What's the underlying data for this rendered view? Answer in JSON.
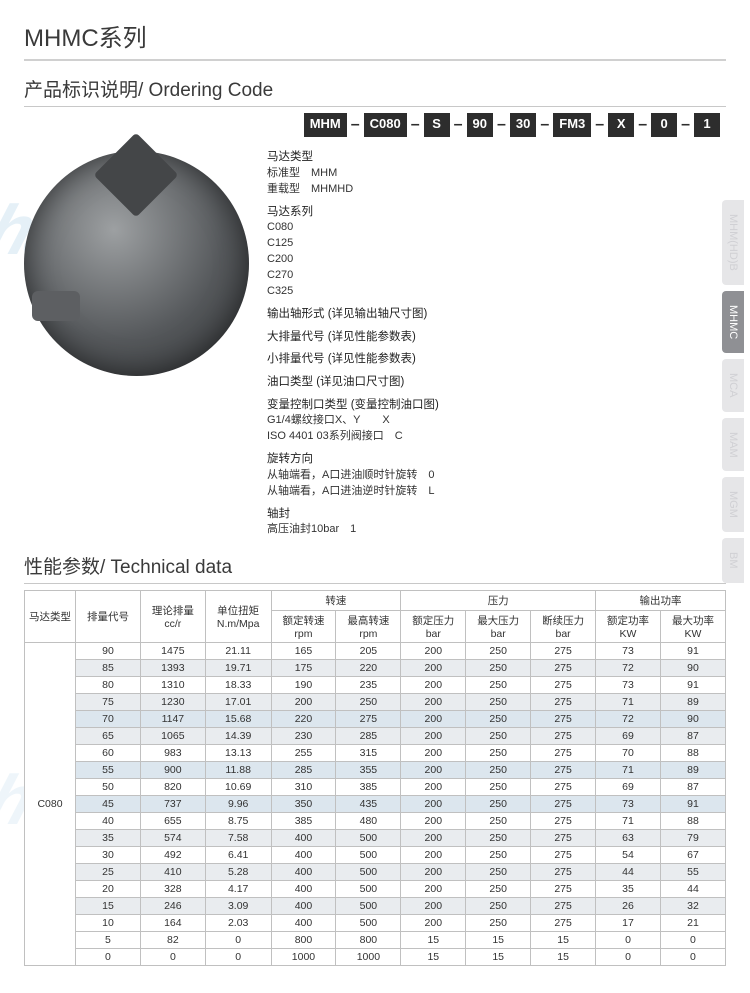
{
  "page": {
    "title": "MHMC系列",
    "watermark": "hanshu"
  },
  "tabs": [
    {
      "label": "MHM(HD)B",
      "active": false
    },
    {
      "label": "MHMC",
      "active": true
    },
    {
      "label": "MCA",
      "active": false
    },
    {
      "label": "MAM",
      "active": false
    },
    {
      "label": "MGM",
      "active": false
    },
    {
      "label": "BM",
      "active": false
    }
  ],
  "ordering": {
    "heading": "产品标识说明/ Ordering Code",
    "code": [
      "MHM",
      "C080",
      "S",
      "90",
      "30",
      "FM3",
      "X",
      "0",
      "1"
    ],
    "groups": [
      {
        "title": "马达类型",
        "lines": [
          "标准型　MHM",
          "重载型　MHMHD"
        ]
      },
      {
        "title": "马达系列",
        "lines": [
          "C080",
          "C125",
          "C200",
          "C270",
          "C325"
        ]
      },
      {
        "title": "输出轴形式 (详见输出轴尺寸图)",
        "lines": []
      },
      {
        "title": "大排量代号 (详见性能参数表)",
        "lines": []
      },
      {
        "title": "小排量代号 (详见性能参数表)",
        "lines": []
      },
      {
        "title": "油口类型 (详见油口尺寸图)",
        "lines": []
      },
      {
        "title": "变量控制口类型 (变量控制油口图)",
        "lines": [
          "G1/4螺纹接口X、Y　　X",
          "ISO 4401 03系列阀接口　C"
        ]
      },
      {
        "title": "旋转方向",
        "lines": [
          "从轴端看，A口进油顺时针旋转　0",
          "从轴端看，A口进油逆时针旋转　L"
        ]
      },
      {
        "title": "轴封",
        "lines": [
          "高压油封10bar　1"
        ]
      }
    ]
  },
  "technical": {
    "heading": "性能参数/ Technical data",
    "group_headers": {
      "speed": "转速",
      "pressure": "压力",
      "power": "输出功率"
    },
    "columns": [
      "马达类型",
      "排量代号",
      "理论排量\ncc/r",
      "单位扭矩\nN.m/Mpa",
      "额定转速\nrpm",
      "最高转速\nrpm",
      "额定压力\nbar",
      "最大压力\nbar",
      "断续压力\nbar",
      "额定功率\nKW",
      "最大功率\nKW"
    ],
    "motor_type": "C080",
    "rows": [
      {
        "hl": 0,
        "cells": [
          90,
          1475,
          21.11,
          165,
          205,
          200,
          250,
          275,
          73,
          91
        ]
      },
      {
        "hl": 1,
        "cells": [
          85,
          1393,
          19.71,
          175,
          220,
          200,
          250,
          275,
          72,
          90
        ]
      },
      {
        "hl": 0,
        "cells": [
          80,
          1310,
          18.33,
          190,
          235,
          200,
          250,
          275,
          73,
          91
        ]
      },
      {
        "hl": 1,
        "cells": [
          75,
          1230,
          17.01,
          200,
          250,
          200,
          250,
          275,
          71,
          89
        ]
      },
      {
        "hl": 2,
        "cells": [
          70,
          1147,
          15.68,
          220,
          275,
          200,
          250,
          275,
          72,
          90
        ]
      },
      {
        "hl": 1,
        "cells": [
          65,
          1065,
          14.39,
          230,
          285,
          200,
          250,
          275,
          69,
          87
        ]
      },
      {
        "hl": 0,
        "cells": [
          60,
          983,
          13.13,
          255,
          315,
          200,
          250,
          275,
          70,
          88
        ]
      },
      {
        "hl": 2,
        "cells": [
          55,
          900,
          11.88,
          285,
          355,
          200,
          250,
          275,
          71,
          89
        ]
      },
      {
        "hl": 0,
        "cells": [
          50,
          820,
          10.69,
          310,
          385,
          200,
          250,
          275,
          69,
          87
        ]
      },
      {
        "hl": 2,
        "cells": [
          45,
          737,
          9.96,
          350,
          435,
          200,
          250,
          275,
          73,
          91
        ]
      },
      {
        "hl": 0,
        "cells": [
          40,
          655,
          8.75,
          385,
          480,
          200,
          250,
          275,
          71,
          88
        ]
      },
      {
        "hl": 1,
        "cells": [
          35,
          574,
          7.58,
          400,
          500,
          200,
          250,
          275,
          63,
          79
        ]
      },
      {
        "hl": 0,
        "cells": [
          30,
          492,
          6.41,
          400,
          500,
          200,
          250,
          275,
          54,
          67
        ]
      },
      {
        "hl": 1,
        "cells": [
          25,
          410,
          5.28,
          400,
          500,
          200,
          250,
          275,
          44,
          55
        ]
      },
      {
        "hl": 0,
        "cells": [
          20,
          328,
          4.17,
          400,
          500,
          200,
          250,
          275,
          35,
          44
        ]
      },
      {
        "hl": 1,
        "cells": [
          15,
          246,
          3.09,
          400,
          500,
          200,
          250,
          275,
          26,
          32
        ]
      },
      {
        "hl": 0,
        "cells": [
          10,
          164,
          2.03,
          400,
          500,
          200,
          250,
          275,
          17,
          21
        ]
      },
      {
        "hl": 0,
        "cells": [
          5,
          82,
          0,
          800,
          800,
          15,
          15,
          15,
          0,
          0
        ]
      },
      {
        "hl": 0,
        "cells": [
          0,
          0,
          0,
          1000,
          1000,
          15,
          15,
          15,
          0,
          0
        ]
      }
    ]
  },
  "style": {
    "text_color": "#333333",
    "border_color": "#c0c0c0",
    "hl_grey": "#e9ecef",
    "hl_blue": "#dce6ee",
    "code_box_bg": "#2d2d2d",
    "tab_bg": "#e6e6e8",
    "tab_active_bg": "#8f9094"
  }
}
